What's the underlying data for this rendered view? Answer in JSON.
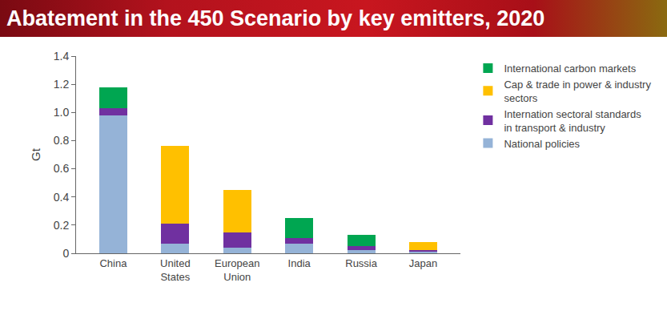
{
  "chart_data": {
    "type": "bar",
    "title": "Abatement in the 450 Scenario by key emitters, 2020",
    "y_label": "Gt",
    "categories": [
      "China",
      "United States",
      "European Union",
      "India",
      "Russia",
      "Japan"
    ],
    "series": [
      {
        "name": "National policies",
        "color": "#95b3d7",
        "values": [
          0.98,
          0.07,
          0.04,
          0.07,
          0.02,
          0.01
        ]
      },
      {
        "name": "Internation sectoral standards in transport & industry",
        "color": "#7030a0",
        "values": [
          0.05,
          0.14,
          0.11,
          0.04,
          0.03,
          0.015
        ]
      },
      {
        "name": "Cap & trade in power & industry sectors",
        "color": "#ffc000",
        "values": [
          0,
          0.55,
          0.3,
          0,
          0,
          0.055
        ]
      },
      {
        "name": "International carbon markets",
        "color": "#00a651",
        "values": [
          0.15,
          0,
          0,
          0.14,
          0.08,
          0
        ]
      }
    ],
    "ylim": [
      0,
      1.4
    ],
    "yticks": [
      0,
      0.2,
      0.4,
      0.6,
      0.8,
      {
        "value": 1,
        "label": "1.0"
      },
      1.2,
      1.4
    ],
    "stacked": true,
    "grid": false,
    "legend": "right"
  }
}
